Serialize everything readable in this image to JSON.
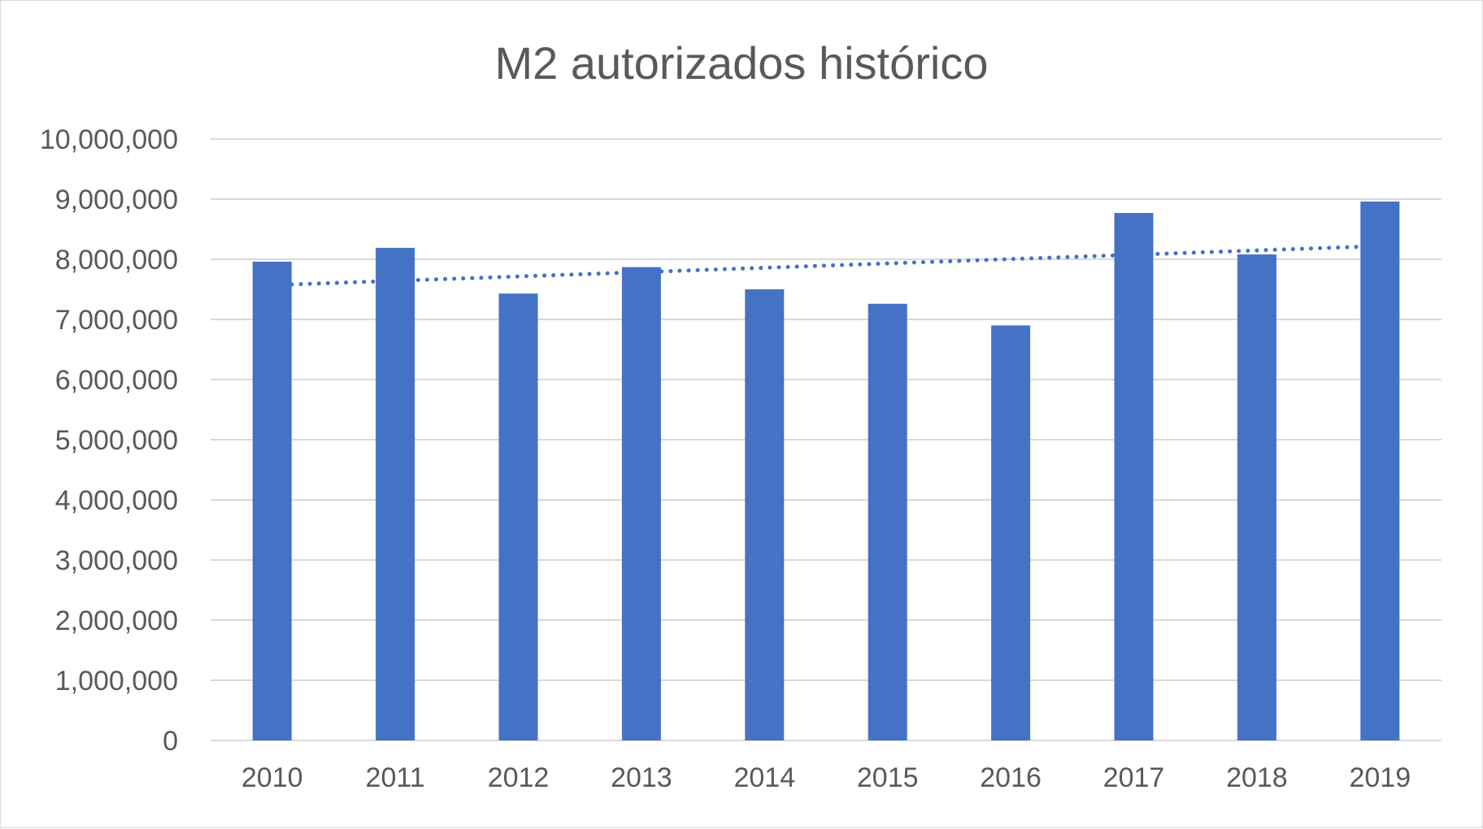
{
  "chart_data": {
    "type": "bar",
    "title": "M2 autorizados histórico",
    "categories": [
      "2010",
      "2011",
      "2012",
      "2013",
      "2014",
      "2015",
      "2016",
      "2017",
      "2018",
      "2019"
    ],
    "series": [
      {
        "values": [
          7960000,
          8190000,
          7430000,
          7870000,
          7500000,
          7260000,
          6900000,
          8770000,
          8080000,
          8960000
        ],
        "color": "#4472C4"
      }
    ],
    "trendline": {
      "type": "linear",
      "style": "dotted",
      "color": "#4472C4"
    },
    "ylim": [
      0,
      10000000
    ],
    "y_ticks": [
      0,
      1000000,
      2000000,
      3000000,
      4000000,
      5000000,
      6000000,
      7000000,
      8000000,
      9000000,
      10000000
    ],
    "y_tick_labels": [
      "0",
      "1,000,000",
      "2,000,000",
      "3,000,000",
      "4,000,000",
      "5,000,000",
      "6,000,000",
      "7,000,000",
      "8,000,000",
      "9,000,000",
      "10,000,000"
    ],
    "xlabel": "",
    "ylabel": "",
    "grid": true,
    "legend": "none",
    "colors": {
      "grid": "#d9d9d9",
      "text": "#595959"
    }
  }
}
